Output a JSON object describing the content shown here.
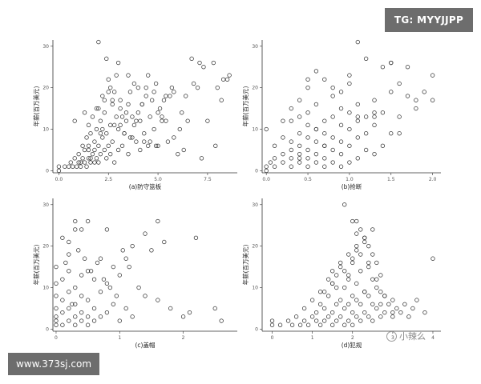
{
  "overlays": {
    "top_right_tag": "TG: MYYJJPP",
    "bottom_left_site": "www.373sj.com",
    "watermark": "小辣么"
  },
  "chart_data": [
    {
      "type": "scatter",
      "xlabel": "(a)防守篮板",
      "ylabel": "年薪(百万美元)",
      "xlim": [
        -0.3,
        9.0
      ],
      "ylim": [
        -0.5,
        31.5
      ],
      "xticks": [
        0.0,
        2.5,
        5.0,
        7.5
      ],
      "xtick_labels": [
        "0.0",
        "2.5",
        "5.0",
        "7.5"
      ],
      "yticks": [
        0,
        10,
        20,
        30
      ],
      "ytick_labels": [
        "0",
        "10",
        "20",
        "30"
      ],
      "x": [
        0,
        0,
        0.3,
        0.5,
        0.6,
        0.7,
        0.8,
        0.9,
        1.0,
        1.0,
        1.1,
        1.2,
        1.2,
        1.3,
        1.3,
        1.4,
        1.4,
        1.5,
        1.5,
        1.5,
        1.6,
        1.6,
        1.7,
        1.7,
        1.8,
        1.8,
        1.9,
        1.9,
        2.0,
        2.0,
        2.0,
        2.1,
        2.1,
        2.2,
        2.2,
        2.3,
        2.3,
        2.4,
        2.4,
        2.5,
        2.5,
        2.6,
        2.6,
        2.7,
        2.7,
        2.8,
        2.8,
        2.9,
        3.0,
        3.0,
        3.1,
        3.1,
        3.2,
        3.3,
        3.4,
        3.5,
        3.5,
        3.6,
        3.7,
        3.8,
        3.9,
        4.0,
        4.0,
        4.1,
        4.2,
        4.3,
        4.4,
        4.5,
        4.6,
        4.7,
        4.8,
        4.9,
        5.0,
        5.0,
        5.2,
        5.3,
        5.5,
        5.6,
        5.8,
        6.0,
        6.2,
        6.5,
        6.8,
        7.0,
        7.3,
        7.5,
        7.8,
        8.0,
        8.3,
        8.6,
        0.8,
        1.3,
        1.8,
        2.2,
        2.6,
        3.3,
        3.8,
        4.3,
        4.8,
        5.2,
        1.5,
        2.1,
        2.7,
        3.2,
        3.6,
        4.1,
        4.6,
        5.1,
        5.7,
        6.3,
        2.4,
        2.9,
        3.4,
        4.4,
        4.9,
        5.4,
        6.1,
        6.7,
        7.1,
        7.9,
        8.2,
        8.5,
        3.1,
        3.7,
        4.2,
        5.4,
        1.6,
        2.3,
        2.8,
        3.5,
        1.1,
        1.9,
        2.5,
        3.0,
        3.9,
        4.5,
        5.8,
        6.4,
        7.2,
        2.0
      ],
      "y": [
        1,
        0,
        1,
        1,
        2,
        1,
        3,
        1,
        2,
        4,
        1,
        3,
        6,
        2,
        5,
        1,
        8,
        3,
        6,
        11,
        2,
        9,
        4,
        13,
        5,
        7,
        3,
        10,
        2,
        6,
        15,
        4,
        12,
        8,
        18,
        5,
        14,
        3,
        9,
        22,
        6,
        11,
        4,
        16,
        7,
        19,
        2,
        13,
        5,
        10,
        15,
        17,
        6,
        9,
        12,
        4,
        16,
        8,
        13,
        11,
        7,
        14,
        20,
        5,
        16,
        9,
        18,
        6,
        13,
        17,
        10,
        21,
        14,
        6,
        12,
        17,
        7,
        18,
        19,
        4,
        14,
        12,
        21,
        20,
        25,
        12,
        26,
        20,
        22,
        23,
        12,
        14,
        2,
        10,
        20,
        9,
        21,
        7,
        19,
        13,
        5,
        9,
        17,
        13,
        19,
        12,
        7,
        15,
        20,
        5,
        27,
        23,
        14,
        20,
        6,
        18,
        10,
        27,
        26,
        6,
        17,
        22,
        11,
        8,
        16,
        12,
        3,
        17,
        11,
        23,
        2,
        15,
        19,
        26,
        12,
        23,
        8,
        18,
        3,
        31
      ],
      "series": []
    },
    {
      "type": "scatter",
      "xlabel": "(b)抢断",
      "ylabel": "年薪(百万美元)",
      "xlim": [
        -0.05,
        2.1
      ],
      "ylim": [
        -0.5,
        31.5
      ],
      "xticks": [
        0.0,
        0.5,
        1.0,
        1.5,
        2.0
      ],
      "xtick_labels": [
        "0.0",
        "0.5",
        "1.0",
        "1.5",
        "2.0"
      ],
      "yticks": [
        0,
        10,
        20,
        30
      ],
      "ytick_labels": [
        "0",
        "10",
        "20",
        "30"
      ],
      "x": [
        0.0,
        0.0,
        0.0,
        0.05,
        0.1,
        0.1,
        0.1,
        0.2,
        0.2,
        0.2,
        0.2,
        0.3,
        0.3,
        0.3,
        0.3,
        0.3,
        0.4,
        0.4,
        0.4,
        0.4,
        0.4,
        0.4,
        0.5,
        0.5,
        0.5,
        0.5,
        0.5,
        0.5,
        0.5,
        0.6,
        0.6,
        0.6,
        0.6,
        0.6,
        0.7,
        0.7,
        0.7,
        0.7,
        0.7,
        0.7,
        0.8,
        0.8,
        0.8,
        0.8,
        0.8,
        0.9,
        0.9,
        0.9,
        0.9,
        0.9,
        1.0,
        1.0,
        1.0,
        1.0,
        1.0,
        1.1,
        1.1,
        1.1,
        1.1,
        1.2,
        1.2,
        1.2,
        1.3,
        1.3,
        1.3,
        1.4,
        1.4,
        1.5,
        1.5,
        1.5,
        1.6,
        1.6,
        1.7,
        1.8,
        1.8,
        1.9,
        2.0,
        2.0,
        0.3,
        0.5,
        0.6,
        0.9,
        1.1,
        1.2,
        1.4,
        0.8,
        1.0,
        1.3,
        1.6,
        0.7,
        1.5,
        1.7,
        0.4,
        0.6,
        1.1,
        1.3
      ],
      "y": [
        0,
        1,
        10,
        2,
        1,
        3,
        6,
        2,
        4,
        8,
        12,
        1,
        3,
        5,
        7,
        15,
        2,
        4,
        6,
        9,
        13,
        17,
        1,
        3,
        5,
        8,
        11,
        14,
        20,
        2,
        4,
        7,
        10,
        16,
        1,
        3,
        6,
        9,
        12,
        22,
        2,
        5,
        8,
        13,
        18,
        1,
        4,
        7,
        11,
        15,
        2,
        6,
        10,
        14,
        21,
        3,
        8,
        12,
        16,
        5,
        9,
        13,
        4,
        11,
        17,
        6,
        14,
        9,
        19,
        26,
        13,
        21,
        18,
        17,
        15,
        19,
        17,
        23,
        12,
        22,
        24,
        19,
        31,
        27,
        25,
        20,
        23,
        13,
        9,
        6,
        26,
        25,
        3,
        10,
        13,
        14
      ],
      "series": []
    },
    {
      "type": "scatter",
      "xlabel": "(c)盖帽",
      "ylabel": "年薪(百万美元)",
      "xlim": [
        -0.05,
        2.85
      ],
      "ylim": [
        -0.5,
        31.5
      ],
      "xticks": [
        0,
        1,
        2
      ],
      "xtick_labels": [
        "0",
        "1",
        "2"
      ],
      "yticks": [
        0,
        10,
        20,
        30
      ],
      "ytick_labels": [
        "0",
        "10",
        "20",
        "30"
      ],
      "x": [
        0,
        0,
        0,
        0,
        0,
        0,
        0,
        0.1,
        0.1,
        0.1,
        0.1,
        0.1,
        0.2,
        0.2,
        0.2,
        0.2,
        0.2,
        0.2,
        0.3,
        0.3,
        0.3,
        0.3,
        0.3,
        0.4,
        0.4,
        0.4,
        0.4,
        0.4,
        0.5,
        0.5,
        0.5,
        0.5,
        0.6,
        0.6,
        0.6,
        0.7,
        0.7,
        0.7,
        0.8,
        0.8,
        0.8,
        0.9,
        0.9,
        1.0,
        1.0,
        1.1,
        1.1,
        1.2,
        1.2,
        1.3,
        1.4,
        1.5,
        1.6,
        1.7,
        2.0,
        2.1,
        2.2,
        2.5,
        2.6,
        0.15,
        0.35,
        0.45,
        0.55,
        0.65,
        0.25,
        0.75,
        0.85,
        0.95,
        1.05,
        1.15,
        1.4,
        1.6,
        1.8,
        0.3,
        0.5
      ],
      "y": [
        1,
        2,
        3,
        5,
        8,
        11,
        15,
        1,
        4,
        7,
        12,
        22,
        2,
        5,
        9,
        14,
        18,
        21,
        1,
        3,
        6,
        10,
        26,
        2,
        4,
        8,
        13,
        24,
        1,
        3,
        7,
        26,
        2,
        5,
        12,
        3,
        9,
        17,
        4,
        11,
        24,
        6,
        15,
        2,
        13,
        5,
        17,
        3,
        20,
        10,
        8,
        19,
        26,
        21,
        3,
        4,
        22,
        5,
        2,
        16,
        19,
        17,
        14,
        16,
        6,
        12,
        10,
        8,
        19,
        15,
        23,
        7,
        5,
        24,
        14
      ],
      "series": []
    },
    {
      "type": "scatter",
      "xlabel": "(d)犯规",
      "ylabel": "年薪(百万美元)",
      "xlim": [
        -0.25,
        4.2
      ],
      "ylim": [
        -0.5,
        31.5
      ],
      "xticks": [
        0,
        1,
        2,
        3,
        4
      ],
      "xtick_labels": [
        "0",
        "1",
        "2",
        "3",
        "4"
      ],
      "yticks": [
        0,
        10,
        20,
        30
      ],
      "ytick_labels": [
        "0",
        "10",
        "20",
        "30"
      ],
      "x": [
        0,
        0,
        0.2,
        0.4,
        0.5,
        0.6,
        0.7,
        0.8,
        0.8,
        0.9,
        1.0,
        1.0,
        1.1,
        1.1,
        1.2,
        1.2,
        1.3,
        1.3,
        1.3,
        1.4,
        1.4,
        1.5,
        1.5,
        1.5,
        1.6,
        1.6,
        1.6,
        1.7,
        1.7,
        1.7,
        1.8,
        1.8,
        1.8,
        1.9,
        1.9,
        1.9,
        2.0,
        2.0,
        2.0,
        2.0,
        2.1,
        2.1,
        2.1,
        2.1,
        2.2,
        2.2,
        2.2,
        2.3,
        2.3,
        2.3,
        2.4,
        2.4,
        2.4,
        2.5,
        2.5,
        2.5,
        2.6,
        2.6,
        2.7,
        2.7,
        2.8,
        2.8,
        2.9,
        3.0,
        3.0,
        3.1,
        3.2,
        3.3,
        3.4,
        3.5,
        3.6,
        3.8,
        4.0,
        2.0,
        2.1,
        2.2,
        2.3,
        2.4,
        2.5,
        2.6,
        1.5,
        1.7,
        1.9,
        2.1,
        2.3,
        2.5,
        2.7,
        1.4,
        1.6,
        1.8,
        2.0,
        2.2,
        2.4,
        2.6,
        2.8,
        1.2,
        1.5,
        1.9,
        2.3,
        2.7,
        3.0,
        1.8,
        2.1
      ],
      "y": [
        1,
        2,
        1,
        2,
        1,
        3,
        1,
        2,
        5,
        1,
        3,
        7,
        2,
        4,
        1,
        6,
        2,
        5,
        9,
        3,
        8,
        1,
        4,
        11,
        2,
        6,
        13,
        3,
        7,
        15,
        1,
        5,
        10,
        2,
        6,
        12,
        1,
        4,
        8,
        17,
        3,
        7,
        11,
        19,
        2,
        6,
        14,
        4,
        9,
        21,
        3,
        8,
        16,
        2,
        6,
        12,
        5,
        10,
        3,
        9,
        4,
        8,
        6,
        3,
        7,
        5,
        4,
        6,
        3,
        5,
        7,
        4,
        17,
        26,
        26,
        24,
        22,
        20,
        18,
        16,
        14,
        16,
        18,
        20,
        22,
        24,
        13,
        12,
        10,
        14,
        16,
        18,
        15,
        12,
        8,
        9,
        11,
        13,
        9,
        6,
        4,
        30,
        23
      ],
      "series": []
    }
  ]
}
